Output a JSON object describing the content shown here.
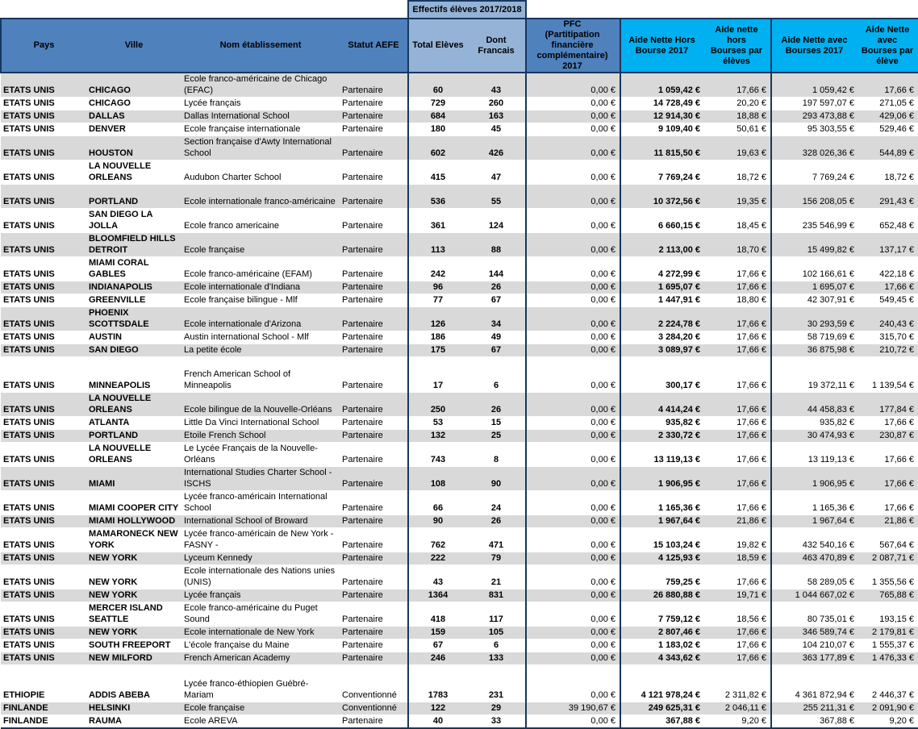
{
  "colors": {
    "header_blue": "#4F81BD",
    "header_light_blue": "#95B3D7",
    "header_cyan": "#00B0F0",
    "row_stripe_gray": "#D9D9D9",
    "border_dark": "#17375D"
  },
  "table": {
    "group_header": {
      "effectifs": "Effectifs élèves 2017/2018"
    },
    "columns": [
      {
        "key": "pays",
        "label": "Pays"
      },
      {
        "key": "ville",
        "label": "Ville"
      },
      {
        "key": "nom-etablissement",
        "label": "Nom établissement"
      },
      {
        "key": "statut-aefe",
        "label": "Statut AEFE"
      },
      {
        "key": "total-eleves",
        "label": "Total Elèves"
      },
      {
        "key": "dont-francais",
        "label": "Dont Francais"
      },
      {
        "key": "pfc-2017",
        "label": "PFC\n(Partitipation financière\ncomplémentaire) 2017"
      },
      {
        "key": "aide-nette-hors-bourse-2017",
        "label": "Aide Nette Hors\nBourse 2017"
      },
      {
        "key": "aide-nette-hors-bourses-par-eleves",
        "label": "Aide nette hors\nBourses par\nélèves"
      },
      {
        "key": "aide-nette-avec-bourses-2017",
        "label": "Aide Nette avec\nBourses 2017"
      },
      {
        "key": "aide-nette-avec-bourses-par-eleve",
        "label": "Aide Nette avec\nBourses par\nélève"
      }
    ],
    "rows": [
      {
        "shade": "gray",
        "spacer": false,
        "cells": [
          "ETATS UNIS",
          "CHICAGO",
          "Ecole franco-américaine de Chicago\n(EFAC)",
          "Partenaire",
          "60",
          "43",
          "0,00 €",
          "1 059,42 €",
          "17,66 €",
          "1 059,42 €",
          "17,66 €"
        ]
      },
      {
        "shade": "white",
        "spacer": false,
        "cells": [
          "ETATS UNIS",
          "CHICAGO",
          "Lycée français",
          "Partenaire",
          "729",
          "260",
          "0,00 €",
          "14 728,49 €",
          "20,20 €",
          "197 597,07 €",
          "271,05 €"
        ]
      },
      {
        "shade": "gray",
        "spacer": false,
        "cells": [
          "ETATS UNIS",
          "DALLAS",
          "Dallas International School",
          "Partenaire",
          "684",
          "163",
          "0,00 €",
          "12 914,30 €",
          "18,88 €",
          "293 473,88 €",
          "429,06 €"
        ]
      },
      {
        "shade": "white",
        "spacer": false,
        "cells": [
          "ETATS UNIS",
          "DENVER",
          "Ecole française internationale",
          "Partenaire",
          "180",
          "45",
          "0,00 €",
          "9 109,40 €",
          "50,61 €",
          "95 303,55 €",
          "529,46 €"
        ]
      },
      {
        "shade": "gray",
        "spacer": false,
        "cells": [
          "ETATS UNIS",
          "HOUSTON",
          "Section française d'Awty International\nSchool",
          "Partenaire",
          "602",
          "426",
          "0,00 €",
          "11 815,50 €",
          "19,63 €",
          "328 026,36 €",
          "544,89 €"
        ]
      },
      {
        "shade": "white",
        "spacer": false,
        "cells": [
          "ETATS UNIS",
          "LA NOUVELLE\nORLEANS",
          "Audubon Charter School",
          "Partenaire",
          "415",
          "47",
          "0,00 €",
          "7 769,24 €",
          "18,72 €",
          "7 769,24 €",
          "18,72 €"
        ]
      },
      {
        "shade": "gray",
        "spacer": false,
        "cells": [
          "ETATS UNIS",
          "PORTLAND",
          "\nEcole internationale franco-américaine",
          "Partenaire",
          "536",
          "55",
          "0,00 €",
          "10 372,56 €",
          "19,35 €",
          "156 208,05 €",
          "291,43 €"
        ]
      },
      {
        "shade": "white",
        "spacer": false,
        "cells": [
          "ETATS UNIS",
          "SAN DIEGO  LA JOLLA",
          "Ecole franco americaine",
          "Partenaire",
          "361",
          "124",
          "0,00 €",
          "6 660,15 €",
          "18,45 €",
          "235 546,99 €",
          "652,48 €"
        ]
      },
      {
        "shade": "gray",
        "spacer": false,
        "cells": [
          "ETATS UNIS",
          "BLOOMFIELD HILLS\nDETROIT",
          "Ecole française",
          "Partenaire",
          "113",
          "88",
          "0,00 €",
          "2 113,00 €",
          "18,70 €",
          "15 499,82 €",
          "137,17 €"
        ]
      },
      {
        "shade": "white",
        "spacer": false,
        "cells": [
          "ETATS UNIS",
          "MIAMI  CORAL GABLES",
          "\nEcole franco-américaine (EFAM)",
          "Partenaire",
          "242",
          "144",
          "0,00 €",
          "4 272,99 €",
          "17,66 €",
          "102 166,61 €",
          "422,18 €"
        ]
      },
      {
        "shade": "gray",
        "spacer": false,
        "cells": [
          "ETATS UNIS",
          "INDIANAPOLIS",
          "Ecole internationale d'Indiana",
          "Partenaire",
          "96",
          "26",
          "0,00 €",
          "1 695,07 €",
          "17,66 €",
          "1 695,07 €",
          "17,66 €"
        ]
      },
      {
        "shade": "white",
        "spacer": false,
        "cells": [
          "ETATS UNIS",
          "GREENVILLE",
          "Ecole française bilingue - Mlf",
          "Partenaire",
          "77",
          "67",
          "0,00 €",
          "1 447,91 €",
          "18,80 €",
          "42 307,91 €",
          "549,45 €"
        ]
      },
      {
        "shade": "gray",
        "spacer": false,
        "cells": [
          "ETATS UNIS",
          "PHOENIX\nSCOTTSDALE",
          "Ecole internationale d'Arizona",
          "Partenaire",
          "126",
          "34",
          "0,00 €",
          "2 224,78 €",
          "17,66 €",
          "30 293,59 €",
          "240,43 €"
        ]
      },
      {
        "shade": "white",
        "spacer": false,
        "cells": [
          "ETATS UNIS",
          "AUSTIN",
          "Austin international School - Mlf",
          "Partenaire",
          "186",
          "49",
          "0,00 €",
          "3 284,20 €",
          "17,66 €",
          "58 719,69 €",
          "315,70 €"
        ]
      },
      {
        "shade": "gray",
        "spacer": false,
        "cells": [
          "ETATS UNIS",
          "SAN DIEGO",
          "La petite école",
          "Partenaire",
          "175",
          "67",
          "0,00 €",
          "3 089,97 €",
          "17,66 €",
          "36 875,98 €",
          "210,72 €"
        ]
      },
      {
        "shade": "white",
        "spacer": false,
        "cells": [
          "ETATS UNIS",
          "MINNEAPOLIS",
          "\nFrench American School of Minneapolis",
          "Partenaire",
          "17",
          "6",
          "0,00 €",
          "300,17 €",
          "17,66 €",
          "19 372,11 €",
          "1 139,54 €"
        ]
      },
      {
        "shade": "gray",
        "spacer": false,
        "cells": [
          "ETATS UNIS",
          "LA NOUVELLE\nORLEANS",
          "Ecole bilingue de la Nouvelle-Orléans",
          "Partenaire",
          "250",
          "26",
          "0,00 €",
          "4 414,24 €",
          "17,66 €",
          "44 458,83 €",
          "177,84 €"
        ]
      },
      {
        "shade": "white",
        "spacer": false,
        "cells": [
          "ETATS UNIS",
          "ATLANTA",
          "Little Da Vinci International School",
          "Partenaire",
          "53",
          "15",
          "0,00 €",
          "935,82 €",
          "17,66 €",
          "935,82 €",
          "17,66 €"
        ]
      },
      {
        "shade": "gray",
        "spacer": false,
        "cells": [
          "ETATS UNIS",
          "PORTLAND",
          "Etoile French School",
          "Partenaire",
          "132",
          "25",
          "0,00 €",
          "2 330,72 €",
          "17,66 €",
          "30 474,93 €",
          "230,87 €"
        ]
      },
      {
        "shade": "white",
        "spacer": false,
        "cells": [
          "ETATS UNIS",
          "LA NOUVELLE\nORLEANS",
          "Le Lycée Français de la Nouvelle-\nOrléans",
          "Partenaire",
          "743",
          "8",
          "0,00 €",
          "13 119,13 €",
          "17,66 €",
          "13 119,13 €",
          "17,66 €"
        ]
      },
      {
        "shade": "gray",
        "spacer": false,
        "cells": [
          "ETATS UNIS",
          "MIAMI",
          "International Studies Charter School -\nISCHS",
          "Partenaire",
          "108",
          "90",
          "0,00 €",
          "1 906,95 €",
          "17,66 €",
          "1 906,95 €",
          "17,66 €"
        ]
      },
      {
        "shade": "white",
        "spacer": false,
        "cells": [
          "ETATS UNIS",
          "MIAMI COOPER CITY",
          "Lycée franco-américain International\nSchool",
          "Partenaire",
          "66",
          "24",
          "0,00 €",
          "1 165,36 €",
          "17,66 €",
          "1 165,36 €",
          "17,66 €"
        ]
      },
      {
        "shade": "gray",
        "spacer": false,
        "cells": [
          "ETATS UNIS",
          "MIAMI HOLLYWOOD",
          "International School of Broward",
          "Partenaire",
          "90",
          "26",
          "0,00 €",
          "1 967,64 €",
          "21,86 €",
          "1 967,64 €",
          "21,86 €"
        ]
      },
      {
        "shade": "white",
        "spacer": false,
        "cells": [
          "ETATS UNIS",
          "MAMARONECK  NEW\nYORK",
          "Lycée franco-américain de New York -\nFASNY -",
          "Partenaire",
          "762",
          "471",
          "0,00 €",
          "15 103,24 €",
          "19,82 €",
          "432 540,16 €",
          "567,64 €"
        ]
      },
      {
        "shade": "gray",
        "spacer": false,
        "cells": [
          "ETATS UNIS",
          "NEW YORK",
          "Lyceum Kennedy",
          "Partenaire",
          "222",
          "79",
          "0,00 €",
          "4 125,93 €",
          "18,59 €",
          "463 470,89 €",
          "2 087,71 €"
        ]
      },
      {
        "shade": "white",
        "spacer": false,
        "cells": [
          "ETATS UNIS",
          "NEW YORK",
          "Ecole internationale des Nations unies\n(UNIS)",
          "Partenaire",
          "43",
          "21",
          "0,00 €",
          "759,25 €",
          "17,66 €",
          "58 289,05 €",
          "1 355,56 €"
        ]
      },
      {
        "shade": "gray",
        "spacer": false,
        "cells": [
          "ETATS UNIS",
          "NEW YORK",
          "Lycée français",
          "Partenaire",
          "1364",
          "831",
          "0,00 €",
          "26 880,88 €",
          "19,71 €",
          "1 044 667,02 €",
          "765,88 €"
        ]
      },
      {
        "shade": "white",
        "spacer": false,
        "cells": [
          "ETATS UNIS",
          "MERCER ISLAND\nSEATTLE",
          "Ecole franco-américaine du Puget\nSound",
          "Partenaire",
          "418",
          "117",
          "0,00 €",
          "7 759,12 €",
          "18,56 €",
          "80 735,01 €",
          "193,15 €"
        ]
      },
      {
        "shade": "gray",
        "spacer": false,
        "cells": [
          "ETATS UNIS",
          "NEW YORK",
          "Ecole internationale de New York",
          "Partenaire",
          "159",
          "105",
          "0,00 €",
          "2 807,46 €",
          "17,66 €",
          "346 589,74 €",
          "2 179,81 €"
        ]
      },
      {
        "shade": "white",
        "spacer": false,
        "cells": [
          "ETATS UNIS",
          "SOUTH FREEPORT",
          "L'école française du Maine",
          "Partenaire",
          "67",
          "6",
          "0,00 €",
          "1 183,02 €",
          "17,66 €",
          "104 210,07 €",
          "1 555,37 €"
        ]
      },
      {
        "shade": "gray",
        "spacer": false,
        "cells": [
          "ETATS UNIS",
          "NEW MILFORD",
          "French American Academy",
          "Partenaire",
          "246",
          "133",
          "0,00 €",
          "4 343,62 €",
          "17,66 €",
          "363 177,89 €",
          "1 476,33 €"
        ]
      },
      {
        "shade": "white",
        "spacer": true,
        "cells": [
          "",
          "",
          "",
          "",
          "",
          "",
          "",
          "",
          "",
          "",
          ""
        ]
      },
      {
        "shade": "white",
        "spacer": false,
        "cells": [
          "ETHIOPIE",
          "ADDIS ABEBA",
          "Lycée franco-éthiopien Guébré-Mariam",
          "Conventionné",
          "1783",
          "231",
          "0,00 €",
          "4 121 978,24 €",
          "2 311,82 €",
          "4 361 872,94 €",
          "2 446,37 €"
        ]
      },
      {
        "shade": "gray",
        "spacer": false,
        "cells": [
          "FINLANDE",
          "HELSINKI",
          "Ecole française",
          "Conventionné",
          "122",
          "29",
          "39 190,67 €",
          "249 625,31 €",
          "2 046,11 €",
          "255 211,31 €",
          "2 091,90 €"
        ]
      },
      {
        "shade": "white",
        "spacer": false,
        "cells": [
          "FINLANDE",
          "RAUMA",
          "Ecole AREVA",
          "Partenaire",
          "40",
          "33",
          "0,00 €",
          "367,88 €",
          "9,20 €",
          "367,88 €",
          "9,20 €"
        ]
      }
    ]
  }
}
